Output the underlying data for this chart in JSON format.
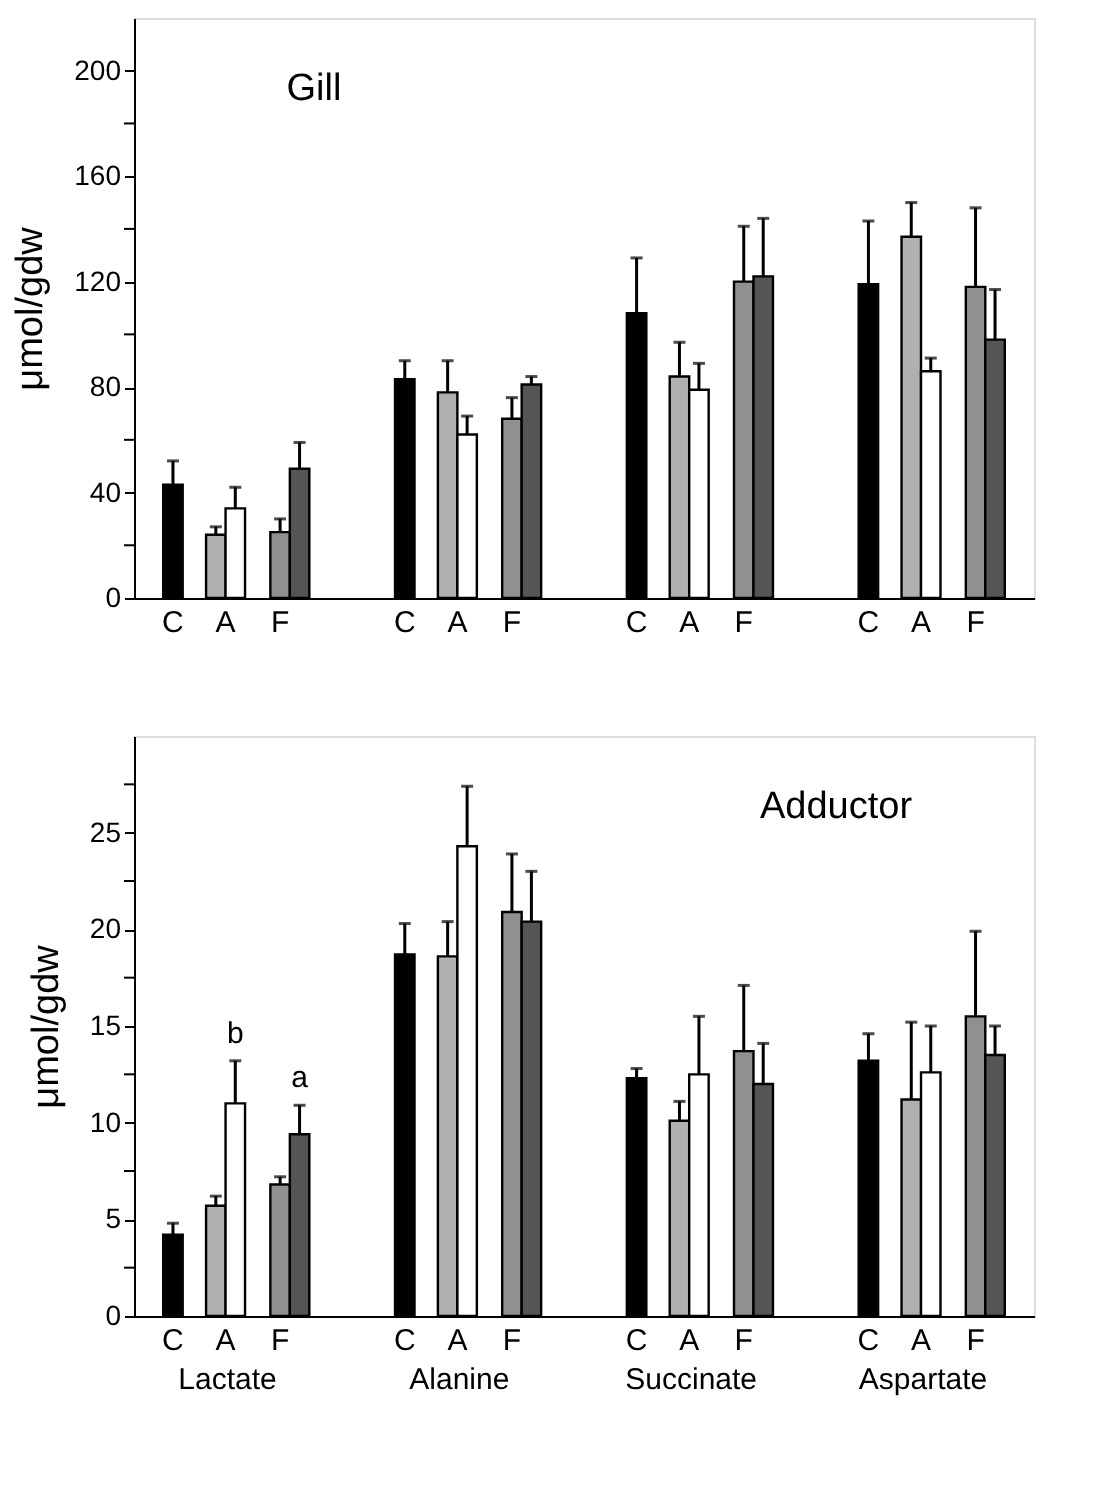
{
  "chart_data": [
    {
      "type": "bar",
      "title": "Gill",
      "ylabel": "μmol/gdw",
      "categories": [
        null,
        null,
        null,
        null
      ],
      "grid": false,
      "legend": false,
      "ylim": [
        0,
        220
      ],
      "yticks": [
        0,
        {
          "value": 20,
          "label": null
        },
        40,
        {
          "value": 60,
          "label": null
        },
        80,
        {
          "value": 100,
          "label": null
        },
        120,
        {
          "value": 140,
          "label": null
        },
        160,
        {
          "value": 180,
          "label": null
        },
        200
      ],
      "series": [
        {
          "color": "#000000",
          "values": [
            43,
            83,
            108,
            119
          ],
          "errors": [
            9,
            7,
            21,
            24
          ]
        },
        {
          "color": "#b0b0b0",
          "values": [
            24,
            78,
            84,
            137
          ],
          "errors": [
            3,
            12,
            13,
            13
          ]
        },
        {
          "color": "#ffffff",
          "values": [
            34,
            62,
            79,
            86
          ],
          "errors": [
            8,
            7,
            10,
            5
          ]
        },
        {
          "color": "#909090",
          "values": [
            25,
            68,
            120,
            118
          ],
          "errors": [
            5,
            8,
            21,
            30
          ]
        },
        {
          "color": "#555555",
          "values": [
            49,
            81,
            122,
            98
          ],
          "errors": [
            10,
            3,
            22,
            19
          ]
        }
      ],
      "annotations": [
        "C",
        "A",
        "F",
        "C",
        "A",
        "F",
        "C",
        "A",
        "F",
        "C",
        "A",
        "F"
      ]
    },
    {
      "type": "bar",
      "title": "Adductor",
      "ylabel": "μmol/gdw",
      "categories": [
        "Lactate",
        "Alanine",
        "Succinate",
        "Aspartate"
      ],
      "grid": false,
      "legend": false,
      "ylim": [
        0,
        30
      ],
      "yticks": [
        0,
        {
          "value": 2.5,
          "label": null
        },
        5,
        {
          "value": 7.5,
          "label": null
        },
        10,
        {
          "value": 12.5,
          "label": null
        },
        15,
        {
          "value": 17.5,
          "label": null
        },
        20,
        {
          "value": 22.5,
          "label": null
        },
        25,
        {
          "value": 27.5,
          "label": null
        }
      ],
      "series": [
        {
          "color": "#000000",
          "values": [
            4.2,
            18.7,
            12.3,
            13.2
          ],
          "errors": [
            0.6,
            1.6,
            0.5,
            1.4
          ]
        },
        {
          "color": "#b0b0b0",
          "values": [
            5.7,
            18.6,
            10.1,
            11.2
          ],
          "errors": [
            0.5,
            1.8,
            1.0,
            4.0
          ]
        },
        {
          "color": "#ffffff",
          "values": [
            11.0,
            24.3,
            12.5,
            12.6
          ],
          "errors": [
            2.2,
            3.1,
            3.0,
            2.4
          ]
        },
        {
          "color": "#909090",
          "values": [
            6.8,
            20.9,
            13.7,
            15.5
          ],
          "errors": [
            0.4,
            3.0,
            3.4,
            4.4
          ]
        },
        {
          "color": "#555555",
          "values": [
            9.4,
            20.4,
            12.0,
            13.5
          ],
          "errors": [
            1.5,
            2.6,
            2.1,
            1.5
          ]
        }
      ],
      "annotations": [
        "C",
        "A",
        "F",
        "C",
        "A",
        "F",
        "C",
        "A",
        "F",
        "C",
        "A",
        "F",
        {
          "text": "b",
          "x": "Lactate",
          "y": 13.2
        },
        {
          "text": "a",
          "x": "Lactate",
          "y": 10.9
        }
      ]
    }
  ]
}
